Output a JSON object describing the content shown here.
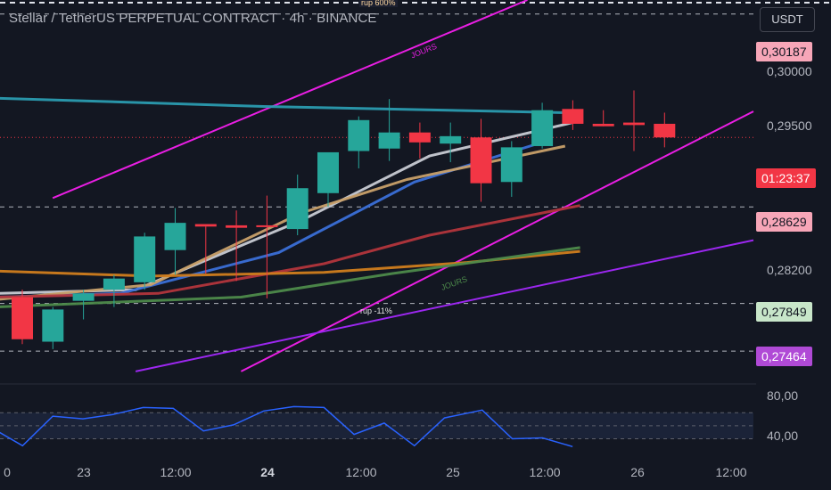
{
  "header": {
    "title": "Stellar / TetherUS PERPETUAL CONTRACT · 4h · BINANCE",
    "currency": "USDT"
  },
  "price_axis": {
    "labels": [
      "0,30000",
      "0,29500",
      "0,28200"
    ],
    "badges": [
      {
        "value": "0,30187",
        "bg": "#f7a6b8",
        "color": "#131722"
      },
      {
        "value": "01:23:37",
        "bg": "#f23645",
        "color": "#ffffff"
      },
      {
        "value": "0,28629",
        "bg": "#f7a6b8",
        "color": "#131722"
      },
      {
        "value": "0,27849",
        "bg": "#c8e6c9",
        "color": "#131722"
      },
      {
        "value": "0,27464",
        "bg": "#b04ad6",
        "color": "#ffffff"
      }
    ]
  },
  "oscillator_axis": {
    "labels": [
      "80,00",
      "40,00"
    ]
  },
  "time_axis": {
    "labels": [
      {
        "text": "0",
        "bold": false
      },
      {
        "text": "23",
        "bold": false
      },
      {
        "text": "12:00",
        "bold": false
      },
      {
        "text": "24",
        "bold": true
      },
      {
        "text": "12:00",
        "bold": false
      },
      {
        "text": "25",
        "bold": false
      },
      {
        "text": "12:00",
        "bold": false
      },
      {
        "text": "26",
        "bold": false
      },
      {
        "text": "12:00",
        "bold": false
      }
    ]
  },
  "annotations": {
    "rup_top": "rup 600%",
    "jours_top": "JOURS",
    "rup_mid": "rup -11%",
    "jours_mid": "JOURS"
  },
  "colors": {
    "bull": "#26a69a",
    "bear": "#f23645",
    "channel": "#e91ee3",
    "trend_purple": "#9c27f0",
    "ma_teal": "#2a9bb0",
    "ma_white": "#c8cbd4",
    "ma_blue": "#3a6fd8",
    "ma_tan": "#c8a06a",
    "ma_red": "#b2353c",
    "ma_orange": "#d07d1e",
    "ma_green": "#4d8a4b",
    "rsi": "#2962ff"
  },
  "chart_data": {
    "type": "candlestick",
    "symbol": "Stellar / TetherUS PERPETUAL CONTRACT",
    "interval": "4h",
    "exchange": "BINANCE",
    "price_range": [
      0.2722,
      0.303
    ],
    "candles": [
      {
        "o": 0.279,
        "h": 0.2796,
        "l": 0.2752,
        "c": 0.2756
      },
      {
        "o": 0.2754,
        "h": 0.2782,
        "l": 0.2748,
        "c": 0.278
      },
      {
        "o": 0.2787,
        "h": 0.2796,
        "l": 0.2772,
        "c": 0.2793
      },
      {
        "o": 0.2796,
        "h": 0.2808,
        "l": 0.2782,
        "c": 0.2805
      },
      {
        "o": 0.2802,
        "h": 0.2842,
        "l": 0.2796,
        "c": 0.2839
      },
      {
        "o": 0.2828,
        "h": 0.2862,
        "l": 0.2808,
        "c": 0.285
      },
      {
        "o": 0.2849,
        "h": 0.2847,
        "l": 0.2809,
        "c": 0.2847
      },
      {
        "o": 0.2848,
        "h": 0.286,
        "l": 0.2803,
        "c": 0.2846
      },
      {
        "o": 0.2848,
        "h": 0.2872,
        "l": 0.2789,
        "c": 0.2847
      },
      {
        "o": 0.2845,
        "h": 0.2889,
        "l": 0.284,
        "c": 0.2878
      },
      {
        "o": 0.2874,
        "h": 0.2905,
        "l": 0.2863,
        "c": 0.2907
      },
      {
        "o": 0.2908,
        "h": 0.2936,
        "l": 0.2894,
        "c": 0.2933
      },
      {
        "o": 0.291,
        "h": 0.295,
        "l": 0.29,
        "c": 0.2923
      },
      {
        "o": 0.2923,
        "h": 0.2931,
        "l": 0.2902,
        "c": 0.2915
      },
      {
        "o": 0.2914,
        "h": 0.2931,
        "l": 0.2899,
        "c": 0.292
      },
      {
        "o": 0.2919,
        "h": 0.2934,
        "l": 0.2867,
        "c": 0.2882
      },
      {
        "o": 0.2883,
        "h": 0.2916,
        "l": 0.2871,
        "c": 0.2911
      },
      {
        "o": 0.2912,
        "h": 0.2947,
        "l": 0.291,
        "c": 0.2941
      },
      {
        "o": 0.2942,
        "h": 0.2949,
        "l": 0.2925,
        "c": 0.293
      },
      {
        "o": 0.293,
        "h": 0.2941,
        "l": 0.2928,
        "c": 0.2928
      },
      {
        "o": 0.2931,
        "h": 0.2957,
        "l": 0.2908,
        "c": 0.2929
      },
      {
        "o": 0.293,
        "h": 0.2939,
        "l": 0.2911,
        "c": 0.2919
      }
    ],
    "moving_averages": [
      {
        "color_key": "ma_teal",
        "values": [
          [
            -0.02,
            0.2951
          ],
          [
            0.35,
            0.2944
          ],
          [
            0.75,
            0.2939
          ]
        ]
      },
      {
        "color_key": "ma_white",
        "values": [
          [
            -0.005,
            0.2793
          ],
          [
            0.18,
            0.2796
          ],
          [
            0.4,
            0.2852
          ],
          [
            0.57,
            0.2904
          ],
          [
            0.76,
            0.2931
          ]
        ]
      },
      {
        "color_key": "ma_blue",
        "values": [
          [
            -0.005,
            0.279
          ],
          [
            0.16,
            0.2793
          ],
          [
            0.37,
            0.2826
          ],
          [
            0.55,
            0.2883
          ],
          [
            0.73,
            0.2917
          ]
        ]
      },
      {
        "color_key": "ma_tan",
        "values": [
          [
            -0.005,
            0.2788
          ],
          [
            0.2,
            0.28
          ],
          [
            0.4,
            0.2858
          ],
          [
            0.54,
            0.2885
          ],
          [
            0.75,
            0.2912
          ]
        ]
      },
      {
        "color_key": "ma_red",
        "values": [
          [
            -0.005,
            0.279
          ],
          [
            0.21,
            0.2793
          ],
          [
            0.43,
            0.2817
          ],
          [
            0.57,
            0.284
          ],
          [
            0.77,
            0.2864
          ]
        ]
      },
      {
        "color_key": "ma_orange",
        "values": [
          [
            -0.005,
            0.2811
          ],
          [
            0.2,
            0.2807
          ],
          [
            0.43,
            0.281
          ],
          [
            0.62,
            0.2818
          ],
          [
            0.77,
            0.2827
          ]
        ]
      },
      {
        "color_key": "ma_green",
        "values": [
          [
            -0.005,
            0.2782
          ],
          [
            0.32,
            0.279
          ],
          [
            0.52,
            0.2809
          ],
          [
            0.77,
            0.283
          ]
        ]
      }
    ],
    "trend_lines": [
      {
        "color_key": "channel",
        "from": [
          0.07,
          0.287
        ],
        "to": [
          0.7,
          0.303
        ]
      },
      {
        "color_key": "channel",
        "from": [
          0.32,
          0.273
        ],
        "to": [
          1.0,
          0.294
        ]
      },
      {
        "color_key": "trend_purple",
        "from": [
          0.18,
          0.273
        ],
        "to": [
          1.0,
          0.2836
        ]
      }
    ],
    "horizontal_levels": [
      0.30187,
      0.28629,
      0.27849,
      0.27464
    ],
    "oscillator": {
      "range": [
        20,
        100
      ],
      "band": [
        40,
        70
      ],
      "points": [
        [
          -0.01,
          52
        ],
        [
          0.03,
          32
        ],
        [
          0.07,
          66
        ],
        [
          0.11,
          63
        ],
        [
          0.15,
          68
        ],
        [
          0.19,
          76
        ],
        [
          0.23,
          75
        ],
        [
          0.27,
          49
        ],
        [
          0.31,
          56
        ],
        [
          0.35,
          72
        ],
        [
          0.39,
          77
        ],
        [
          0.43,
          76
        ],
        [
          0.47,
          45
        ],
        [
          0.51,
          58
        ],
        [
          0.55,
          32
        ],
        [
          0.59,
          64
        ],
        [
          0.64,
          73
        ],
        [
          0.68,
          40
        ],
        [
          0.72,
          41
        ],
        [
          0.76,
          31
        ]
      ]
    }
  }
}
